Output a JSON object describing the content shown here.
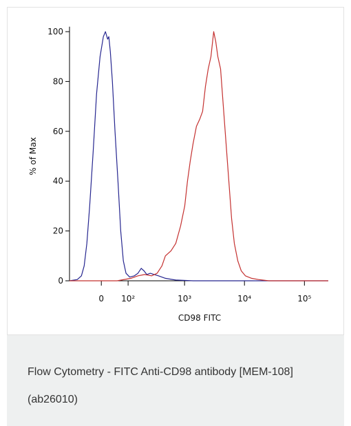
{
  "chart_data": {
    "type": "line",
    "x_label": "CD98 FITC",
    "y_label": "% of Max",
    "xscale": "asinh",
    "xlim": [
      -127,
      250000
    ],
    "ylim": [
      0,
      102
    ],
    "xticks": [
      0,
      {
        "value": 100,
        "label": "10²"
      },
      {
        "value": 1000,
        "label": "10³"
      },
      {
        "value": 10000,
        "label": "10⁴"
      },
      {
        "value": 100000,
        "label": "10⁵"
      }
    ],
    "yticks": [
      0,
      20,
      40,
      60,
      80,
      100
    ],
    "series": [
      {
        "color": "#25258f",
        "x": [
          -127,
          -87,
          -69,
          -58,
          -48,
          -38,
          -26,
          -15,
          -4,
          6.5,
          13,
          20,
          24,
          29,
          36,
          45,
          56,
          67,
          78,
          90,
          108,
          134,
          157,
          181,
          203,
          228,
          262,
          308,
          364,
          476,
          712,
          1386,
          250000
        ],
        "values": [
          0,
          0.5,
          2,
          6,
          15,
          30,
          52,
          75,
          90,
          98,
          100,
          97,
          98,
          92,
          80,
          60,
          40,
          20,
          8,
          3,
          1.5,
          2,
          3,
          5,
          4,
          2.5,
          3,
          2.5,
          2,
          1,
          0.3,
          0,
          0
        ]
      },
      {
        "color": "#c4302f",
        "x": [
          -127,
          53,
          115,
          157,
          209,
          277,
          345,
          417,
          476,
          591,
          712,
          859,
          1007,
          1120,
          1245,
          1386,
          1579,
          1804,
          2006,
          2232,
          2481,
          2758,
          3066,
          3320,
          3597,
          4000,
          4439,
          4934,
          5485,
          6098,
          6779,
          7743,
          8838,
          10356,
          13140,
          17130,
          25440,
          250000
        ],
        "values": [
          0,
          0,
          1,
          2,
          2.5,
          2,
          3,
          6,
          10,
          12,
          15,
          22,
          30,
          40,
          48,
          55,
          62,
          65,
          68,
          78,
          85,
          90,
          100,
          96,
          90,
          85,
          70,
          55,
          40,
          25,
          15,
          8,
          4,
          2,
          1,
          0.5,
          0,
          0
        ]
      }
    ]
  },
  "caption": "Flow Cytometry - FITC Anti-CD98 antibody [MEM-108] (ab26010)"
}
